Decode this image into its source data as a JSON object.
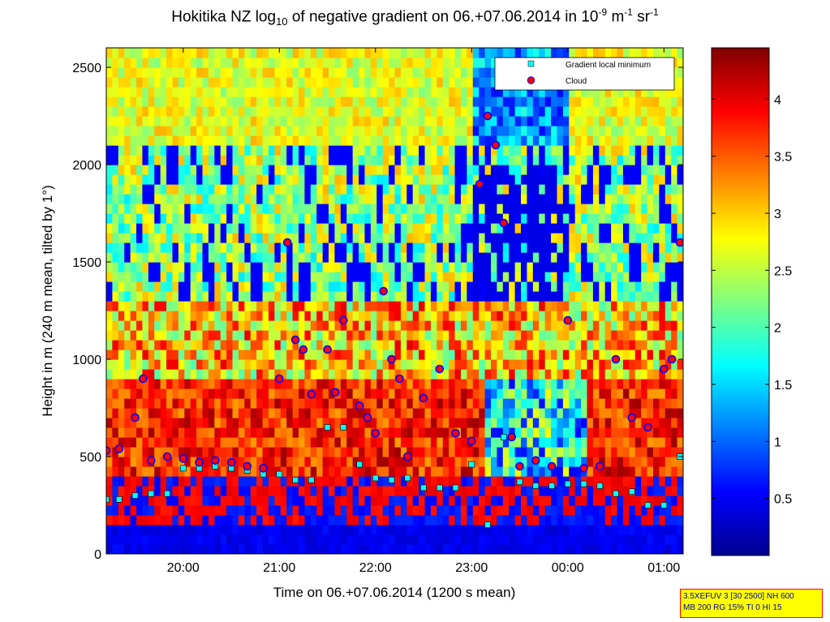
{
  "chart_data": {
    "type": "heatmap",
    "title": {
      "prefix": "Hokitika NZ log",
      "sub": "10",
      "middle": " of negative gradient on 06.+07.06.2014 in 10",
      "exp1": "-9",
      "unit_m": " m",
      "exp2": "-1",
      "unit_sr": " sr",
      "exp3": "-1"
    },
    "xlabel": "Time on 06.+07.06.2014 (1200 s mean)",
    "ylabel": "Height in m (240 m mean, tilted by 1°)",
    "xlim": [
      "19:12",
      "01:12"
    ],
    "ylim": [
      0,
      2600
    ],
    "x_ticks": [
      "20:00",
      "21:00",
      "22:00",
      "23:00",
      "00:00",
      "01:00"
    ],
    "y_ticks": [
      0,
      500,
      1000,
      1500,
      2000,
      2500
    ],
    "colorbar": {
      "range": [
        0,
        4.45
      ],
      "ticks": [
        0.5,
        1,
        1.5,
        2,
        2.5,
        3,
        3.5,
        4
      ],
      "colormap": "jet"
    },
    "legend": {
      "position": "top-right",
      "entries": [
        {
          "name": "Gradient local minimum",
          "marker": "square",
          "color": "#00ffff"
        },
        {
          "name": "Cloud",
          "marker": "circle",
          "color": "#ff0000"
        }
      ]
    },
    "series": [
      {
        "name": "Gradient local minimum",
        "x": [
          "19:12",
          "19:20",
          "19:30",
          "19:40",
          "19:50",
          "20:00",
          "20:10",
          "20:20",
          "20:30",
          "20:40",
          "20:50",
          "21:00",
          "21:10",
          "21:20",
          "21:30",
          "21:40",
          "21:50",
          "22:00",
          "22:10",
          "22:20",
          "22:30",
          "22:40",
          "22:50",
          "23:00",
          "23:10",
          "23:20",
          "23:30",
          "23:40",
          "23:50",
          "00:00",
          "00:10",
          "00:20",
          "00:30",
          "00:40",
          "00:50",
          "01:00",
          "01:10"
        ],
        "y": [
          280,
          280,
          300,
          310,
          310,
          440,
          440,
          450,
          440,
          430,
          410,
          410,
          380,
          380,
          650,
          650,
          460,
          390,
          380,
          390,
          340,
          340,
          340,
          460,
          150,
          600,
          370,
          350,
          350,
          360,
          360,
          350,
          310,
          320,
          250,
          250,
          500
        ]
      },
      {
        "name": "Cloud",
        "x": [
          "19:12",
          "19:20",
          "19:30",
          "19:35",
          "19:40",
          "19:50",
          "20:00",
          "20:10",
          "20:20",
          "20:30",
          "20:40",
          "20:50",
          "21:00",
          "21:05",
          "21:10",
          "21:15",
          "21:20",
          "21:30",
          "21:35",
          "21:40",
          "21:50",
          "21:55",
          "22:00",
          "22:05",
          "22:10",
          "22:15",
          "22:20",
          "22:30",
          "22:40",
          "22:50",
          "23:00",
          "23:05",
          "23:10",
          "23:15",
          "23:20",
          "23:25",
          "23:30",
          "23:40",
          "23:50",
          "00:00",
          "00:10",
          "00:20",
          "00:30",
          "00:40",
          "00:50",
          "01:00",
          "01:05",
          "01:10"
        ],
        "y": [
          530,
          540,
          700,
          900,
          480,
          500,
          490,
          470,
          480,
          470,
          450,
          440,
          900,
          1600,
          1100,
          1050,
          820,
          1050,
          830,
          1200,
          760,
          700,
          620,
          1350,
          1000,
          900,
          500,
          800,
          950,
          620,
          580,
          1900,
          2250,
          2100,
          1700,
          600,
          450,
          480,
          450,
          1200,
          440,
          450,
          1000,
          700,
          650,
          950,
          1000,
          1600
        ]
      }
    ]
  },
  "info_box": {
    "line1": "3.5XEFUV 3 [30 2500] NH 600",
    "line2": "MB 200 RG 15% TI 0 HI 15"
  }
}
